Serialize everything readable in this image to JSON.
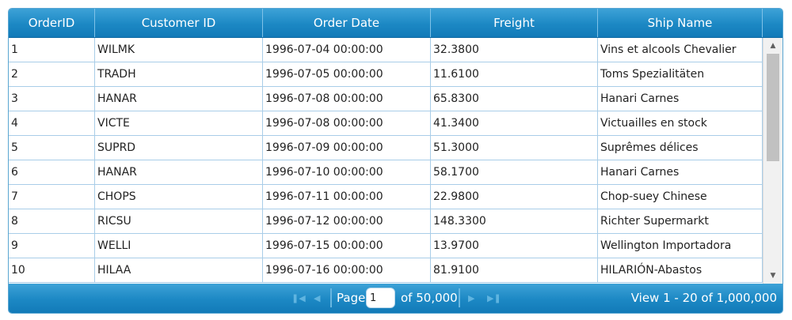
{
  "columns": [
    "OrderID",
    "Customer ID",
    "Order Date",
    "Freight",
    "Ship Name"
  ],
  "rows": [
    [
      "1",
      "WILMK",
      "1996-07-04 00:00:00",
      "32.3800",
      "Vins et alcools Chevalier"
    ],
    [
      "2",
      "TRADH",
      "1996-07-05 00:00:00",
      "11.6100",
      "Toms Spezialitäten"
    ],
    [
      "3",
      "HANAR",
      "1996-07-08 00:00:00",
      "65.8300",
      "Hanari Carnes"
    ],
    [
      "4",
      "VICTE",
      "1996-07-08 00:00:00",
      "41.3400",
      "Victuailles en stock"
    ],
    [
      "5",
      "SUPRD",
      "1996-07-09 00:00:00",
      "51.3000",
      "Suprêmes délices"
    ],
    [
      "6",
      "HANAR",
      "1996-07-10 00:00:00",
      "58.1700",
      "Hanari Carnes"
    ],
    [
      "7",
      "CHOPS",
      "1996-07-11 00:00:00",
      "22.9800",
      "Chop-suey Chinese"
    ],
    [
      "8",
      "RICSU",
      "1996-07-12 00:00:00",
      "148.3300",
      "Richter Supermarkt"
    ],
    [
      "9",
      "WELLI",
      "1996-07-15 00:00:00",
      "13.9700",
      "Wellington Importadora"
    ],
    [
      "10",
      "HILAA",
      "1996-07-16 00:00:00",
      "81.9100",
      "HILARIÓN-Abastos"
    ]
  ],
  "pager": {
    "page_label": "Page",
    "page_value": "1",
    "of_label": "of 50,000",
    "view_label": "View 1 - 20 of 1,000,000",
    "first_icon": "first-page-icon",
    "prev_icon": "prev-page-icon",
    "next_icon": "next-page-icon",
    "last_icon": "last-page-icon"
  },
  "colors": {
    "header_bg": "#1c88c4",
    "grid_line": "#a9cde8",
    "text": "#222222"
  }
}
